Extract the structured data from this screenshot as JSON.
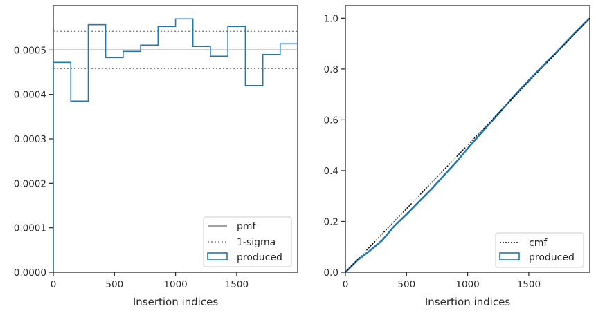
{
  "chart_data": [
    {
      "type": "step",
      "xlabel": "Insertion indices",
      "ylabel": "",
      "xlim": [
        0,
        1999
      ],
      "ylim": [
        0,
        0.0006
      ],
      "x_ticks": [
        0,
        500,
        1000,
        1500
      ],
      "x_tick_labels": [
        "0",
        "500",
        "1000",
        "1500"
      ],
      "y_ticks": [
        0,
        0.0001,
        0.0002,
        0.0003,
        0.0004,
        0.0005
      ],
      "y_tick_labels": [
        "0.0000",
        "0.0001",
        "0.0002",
        "0.0003",
        "0.0004",
        "0.0005"
      ],
      "legend_position": "lower right",
      "legend": [
        "pmf",
        "1-sigma",
        "produced"
      ],
      "reference_lines": {
        "pmf": 0.0005,
        "sigma_lower": 0.000458,
        "sigma_upper": 0.000542
      },
      "bin_edges": [
        0,
        143,
        286,
        428,
        571,
        714,
        857,
        1000,
        1142,
        1285,
        1428,
        1571,
        1714,
        1856,
        1999
      ],
      "values": [
        0.000472,
        0.000385,
        0.000557,
        0.000483,
        0.000497,
        0.000511,
        0.000553,
        0.00057,
        0.000508,
        0.000486,
        0.000553,
        0.00042,
        0.00049,
        0.000514
      ],
      "colors": {
        "pmf": "#808080",
        "sigma": "#808080",
        "produced": "#1f77b4"
      }
    },
    {
      "type": "line",
      "xlabel": "Insertion indices",
      "ylabel": "",
      "xlim": [
        0,
        1999
      ],
      "ylim": [
        0,
        1.05
      ],
      "x_ticks": [
        0,
        500,
        1000,
        1500
      ],
      "x_tick_labels": [
        "0",
        "500",
        "1000",
        "1500"
      ],
      "y_ticks": [
        0,
        0.2,
        0.4,
        0.6,
        0.8,
        1.0
      ],
      "y_tick_labels": [
        "0.0",
        "0.2",
        "0.4",
        "0.6",
        "0.8",
        "1.0"
      ],
      "legend_position": "lower right",
      "legend": [
        "cmf",
        "produced"
      ],
      "cmf": {
        "x": [
          0,
          1999
        ],
        "y": [
          0,
          1.0
        ]
      },
      "produced": {
        "x": [
          0,
          100,
          200,
          300,
          400,
          500,
          600,
          700,
          800,
          900,
          1000,
          1100,
          1200,
          1300,
          1400,
          1500,
          1600,
          1700,
          1800,
          1900,
          1999
        ],
        "y": [
          0,
          0.048,
          0.085,
          0.125,
          0.182,
          0.228,
          0.277,
          0.325,
          0.378,
          0.43,
          0.487,
          0.542,
          0.596,
          0.65,
          0.704,
          0.755,
          0.805,
          0.853,
          0.903,
          0.953,
          1.0
        ]
      },
      "colors": {
        "cmf": "#000000",
        "produced": "#1f77b4"
      }
    }
  ]
}
